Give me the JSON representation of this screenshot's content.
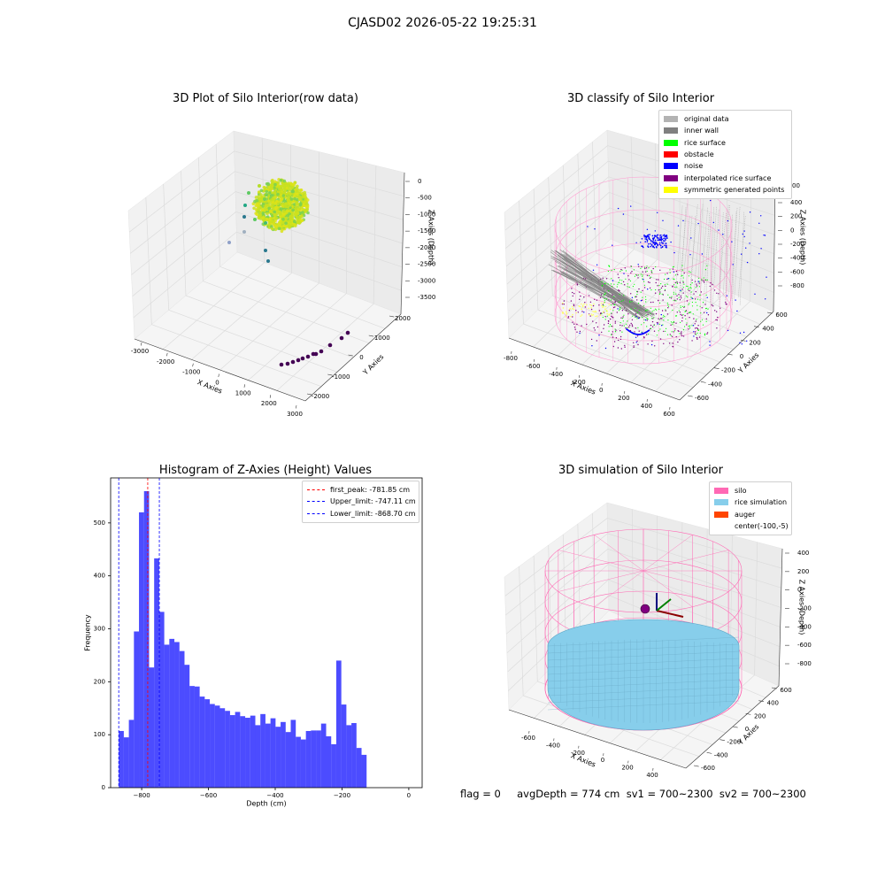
{
  "suptitle": "CJASD02 2026-05-22 19:25:31",
  "panels": {
    "raw": {
      "title": "3D Plot of Silo Interior(row data)",
      "xlabel": "X Axies",
      "ylabel": "Y Axies",
      "zlabel": "Z Axies (Depth)",
      "xticks": [
        "-3000",
        "-2000",
        "-1000",
        "0",
        "1000",
        "2000",
        "3000"
      ],
      "yticks": [
        "-2000",
        "-1000",
        "0",
        "1000",
        "2000"
      ],
      "zticks": [
        "0",
        "-500",
        "-1000",
        "-1500",
        "-2000",
        "-2500",
        "-3000",
        "-3500"
      ]
    },
    "classify": {
      "title": "3D classify of Silo Interior",
      "xlabel": "X Axies",
      "ylabel": "Y Axies",
      "zlabel": "Z Axies (Depth)",
      "xticks": [
        "-800",
        "-600",
        "-400",
        "-200",
        "0",
        "200",
        "400",
        "600"
      ],
      "yticks": [
        "-600",
        "-400",
        "-200",
        "0",
        "200",
        "400",
        "600"
      ],
      "zticks": [
        "400",
        "200",
        "0",
        "-200",
        "-400",
        "-600",
        "-800"
      ],
      "zticks_partial": "00",
      "legend": [
        {
          "label": "original data",
          "color": "#b3b3b3"
        },
        {
          "label": "inner wall",
          "color": "#808080"
        },
        {
          "label": "rice surface",
          "color": "#00ff00"
        },
        {
          "label": "obstacle",
          "color": "#ff0000"
        },
        {
          "label": "noise",
          "color": "#0000ff"
        },
        {
          "label": "interpolated rice surface",
          "color": "#800080"
        },
        {
          "label": "symmetric generated points",
          "color": "#ffff00"
        }
      ]
    },
    "histogram": {
      "title": "Histogram of Z-Axies (Height) Values",
      "xlabel": "Depth (cm)",
      "ylabel": "Frequency",
      "legend": [
        {
          "label": "first_peak: -781.85 cm",
          "color": "#ff0000"
        },
        {
          "label": "Upper_limit: -747.11 cm",
          "color": "#0000ff"
        },
        {
          "label": "Lower_limit: -868.70 cm",
          "color": "#0000ff"
        }
      ]
    },
    "simulation": {
      "title": "3D simulation of Silo Interior",
      "xlabel": "X Axies",
      "ylabel": "Y Axies",
      "zlabel": "Z Axies (Depth)",
      "xticks": [
        "-600",
        "-400",
        "-200",
        "0",
        "200",
        "400"
      ],
      "yticks": [
        "-600",
        "-400",
        "-200",
        "0",
        "200",
        "400",
        "600"
      ],
      "zticks": [
        "400",
        "200",
        "0",
        "-200",
        "-400",
        "-600",
        "-800"
      ],
      "legend": [
        {
          "label": "silo",
          "color": "#ff69b4"
        },
        {
          "label": "rice simulation",
          "color": "#87ceeb"
        },
        {
          "label": "auger",
          "color": "#ff4500"
        },
        {
          "label": "center(-100,-5)",
          "color": ""
        }
      ]
    }
  },
  "status_text": "flag = 0     avgDepth = 774 cm  sv1 = 700~2300  sv2 = 700~2300",
  "chart_data": [
    {
      "type": "histogram",
      "title": "Histogram of Z-Axies (Height) Values",
      "xlabel": "Depth (cm)",
      "ylabel": "Frequency",
      "xlim": [
        -893,
        40
      ],
      "ylim": [
        0,
        585
      ],
      "xticks": [
        -800,
        -600,
        -400,
        -200,
        0
      ],
      "yticks": [
        0,
        100,
        200,
        300,
        400,
        500
      ],
      "bin_start": -868.7,
      "bin_width": 15.15,
      "counts": [
        107,
        95,
        128,
        295,
        520,
        560,
        227,
        433,
        332,
        270,
        281,
        275,
        258,
        232,
        192,
        191,
        172,
        167,
        158,
        155,
        150,
        145,
        137,
        143,
        135,
        132,
        136,
        118,
        139,
        121,
        131,
        115,
        124,
        105,
        128,
        96,
        91,
        107,
        108,
        108,
        121,
        97,
        82,
        240,
        157,
        118,
        122,
        75,
        62
      ],
      "bar_color": "#0000ff",
      "vlines": [
        {
          "x": -781.85,
          "label": "first_peak: -781.85 cm",
          "color": "#ff0000"
        },
        {
          "x": -747.11,
          "label": "Upper_limit: -747.11 cm",
          "color": "#0000ff"
        },
        {
          "x": -868.7,
          "label": "Lower_limit: -868.70 cm",
          "color": "#0000ff"
        }
      ],
      "legend_position": "upper right"
    },
    {
      "type": "scatter",
      "title": "3D Plot of Silo Interior(row data)",
      "xlabel": "X Axies",
      "ylabel": "Y Axies",
      "zlabel": "Z Axies (Depth)",
      "xlim": [
        -3000,
        3000
      ],
      "ylim": [
        -2000,
        2000
      ],
      "zlim": [
        -3500,
        0
      ]
    },
    {
      "type": "scatter",
      "title": "3D classify of Silo Interior",
      "xlabel": "X Axies",
      "ylabel": "Y Axies",
      "zlabel": "Z Axies (Depth)",
      "legend_position": "upper right"
    },
    {
      "type": "scatter",
      "title": "3D simulation of Silo Interior",
      "xlabel": "X Axies",
      "ylabel": "Y Axies",
      "zlabel": "Z Axies (Depth)",
      "legend_position": "upper right"
    }
  ]
}
